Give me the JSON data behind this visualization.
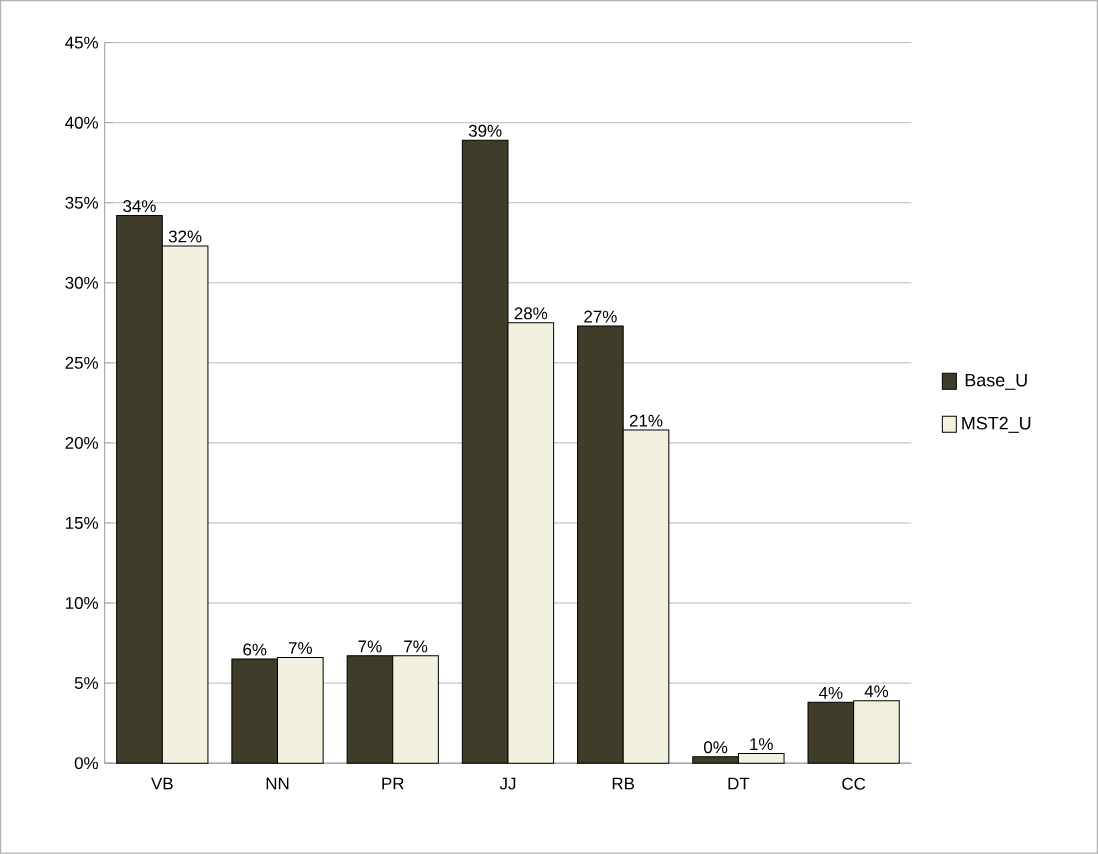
{
  "chart_data": {
    "type": "bar",
    "categories": [
      "VB",
      "NN",
      "PR",
      "JJ",
      "RB",
      "DT",
      "CC"
    ],
    "series": [
      {
        "name": "Base_U",
        "color": "#3f3c2a",
        "values": [
          34.2,
          6.5,
          6.7,
          38.9,
          27.3,
          0.4,
          3.8
        ],
        "value_labels": [
          "34%",
          "6%",
          "7%",
          "39%",
          "27%",
          "0%",
          "4%"
        ]
      },
      {
        "name": "MST2_U",
        "color": "#f2f0de",
        "values": [
          32.3,
          6.6,
          6.7,
          27.5,
          20.8,
          0.6,
          3.9
        ],
        "value_labels": [
          "32%",
          "7%",
          "7%",
          "28%",
          "21%",
          "1%",
          "4%"
        ]
      }
    ],
    "ylim": [
      0,
      45
    ],
    "yticks": [
      {
        "value": 0,
        "label": "0%"
      },
      {
        "value": 5,
        "label": "5%"
      },
      {
        "value": 10,
        "label": "10%"
      },
      {
        "value": 15,
        "label": "15%"
      },
      {
        "value": 20,
        "label": "20%"
      },
      {
        "value": 25,
        "label": "25%"
      },
      {
        "value": 30,
        "label": "30%"
      },
      {
        "value": 35,
        "label": "35%"
      },
      {
        "value": 40,
        "label": "40%"
      },
      {
        "value": 45,
        "label": "45%"
      }
    ],
    "grid": "y",
    "legend": "right"
  }
}
